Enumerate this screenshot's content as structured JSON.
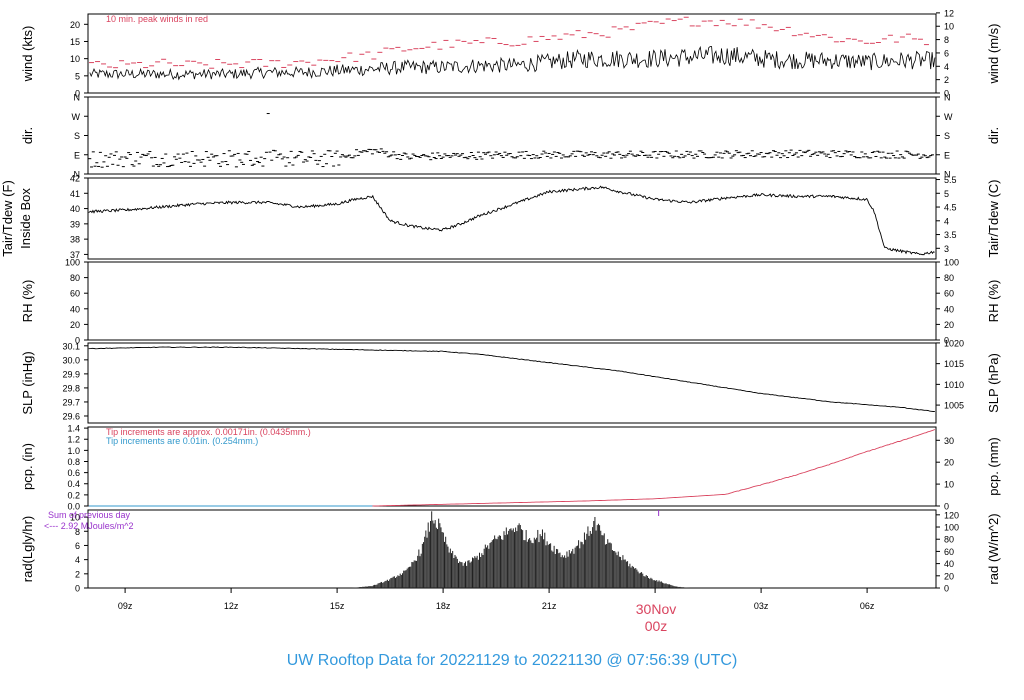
{
  "footer_title": "UW Rooftop Data for 20221129  to  20221130 @ 07:56:39  (UTC)",
  "date_label": {
    "line1": "30Nov",
    "line2": "00z"
  },
  "colors": {
    "frame": "#000000",
    "red": "#d9445f",
    "blue": "#3399cc",
    "purple": "#9933cc",
    "title_blue": "#3399dd"
  },
  "x_axis": {
    "unit": "hours since 2022-11-29 00z",
    "range": [
      7.95,
      31.95
    ],
    "ticks": [
      {
        "h": 9,
        "label": "09z"
      },
      {
        "h": 12,
        "label": "12z"
      },
      {
        "h": 15,
        "label": "15z"
      },
      {
        "h": 18,
        "label": "18z"
      },
      {
        "h": 21,
        "label": "21z"
      },
      {
        "h": 24,
        "label": ""
      },
      {
        "h": 27,
        "label": "03z"
      },
      {
        "h": 30,
        "label": "06z"
      }
    ]
  },
  "panels": {
    "wind": {
      "ylabel_left": "wind (kts)",
      "ylabel_right": "wind (m/s)",
      "left_ticks": [
        "0",
        "5",
        "10",
        "15",
        "20"
      ],
      "right_ticks": [
        "0",
        "2",
        "4",
        "6",
        "8",
        "10",
        "12"
      ],
      "annotation": "10 min. peak winds in red"
    },
    "dir": {
      "ylabel_left": "dir.",
      "ylabel_right": "dir.",
      "left_ticks": [
        "N",
        "E",
        "S",
        "W",
        "N"
      ],
      "right_ticks": [
        "N",
        "E",
        "S",
        "W",
        "N"
      ]
    },
    "temp": {
      "ylabel_left_1": "Tair/Tdew (F)",
      "ylabel_left_2": "Inside Box",
      "ylabel_right": "Tair/Tdew (C)",
      "left_ticks": [
        "37",
        "38",
        "39",
        "40",
        "41",
        "42"
      ],
      "right_ticks": [
        "3",
        "3.5",
        "4",
        "4.5",
        "5",
        "5.5"
      ]
    },
    "rh": {
      "ylabel_left": "RH (%)",
      "ylabel_right": "RH (%)",
      "left_ticks": [
        "0",
        "20",
        "40",
        "60",
        "80",
        "100"
      ],
      "right_ticks": [
        "0",
        "20",
        "40",
        "60",
        "80",
        "100"
      ]
    },
    "slp": {
      "ylabel_left": "SLP (inHg)",
      "ylabel_right": "SLP (hPa)",
      "left_ticks": [
        "29.6",
        "29.7",
        "29.8",
        "29.9",
        "30.0",
        "30.1"
      ],
      "right_ticks": [
        "1005",
        "1010",
        "1015",
        "1020"
      ]
    },
    "pcp": {
      "ylabel_left": "pcp. (in)",
      "ylabel_right": "pcp. (mm)",
      "left_ticks": [
        "0.0",
        "0.2",
        "0.4",
        "0.6",
        "0.8",
        "1.0",
        "1.2",
        "1.4"
      ],
      "right_ticks": [
        "0",
        "10",
        "20",
        "30"
      ],
      "annotation_red": "Tip increments are approx. 0.00171in. (0.0435mm.)",
      "annotation_blue": "Tip increments are 0.01in. (0.254mm.)"
    },
    "rad": {
      "ylabel_left": "rad(Lgly/hr)",
      "ylabel_right": "rad (W/m^2)",
      "left_ticks": [
        "0",
        "2",
        "4",
        "6",
        "8",
        "10"
      ],
      "right_ticks": [
        "0",
        "20",
        "40",
        "60",
        "80",
        "100",
        "120"
      ],
      "annotation_1": "Sum of previous day",
      "annotation_2": "<--- 2.92 MJoules/m^2"
    }
  },
  "chart_data": [
    {
      "type": "line",
      "panel": "wind",
      "name": "wind (kts)",
      "x": [
        8.0,
        9.0,
        10.0,
        11.0,
        12.0,
        13.0,
        14.0,
        15.0,
        16.0,
        17.0,
        18.0,
        19.0,
        20.0,
        21.0,
        22.0,
        23.0,
        24.0,
        25.0,
        26.0,
        27.0,
        28.0,
        29.0,
        30.0,
        31.0,
        31.95
      ],
      "y": [
        5.5,
        5.5,
        5.5,
        5.5,
        5.5,
        6,
        6,
        6.5,
        7,
        7.5,
        7.5,
        8,
        8,
        9,
        10,
        10,
        10,
        10.5,
        11,
        10,
        9.5,
        9.5,
        9,
        9.5,
        9.5
      ],
      "peak_y": [
        8,
        8,
        8.5,
        8,
        8.5,
        8.5,
        9,
        10,
        11,
        13,
        14,
        14.5,
        15,
        16,
        17,
        18,
        20,
        21,
        21,
        20,
        18,
        16,
        15,
        16,
        15
      ]
    },
    {
      "type": "scatter",
      "panel": "dir",
      "name": "wind direction",
      "x": [
        8.0,
        10.0,
        12.0,
        14.0,
        15.0,
        15.5,
        16.0,
        17.0,
        20.0,
        24.0,
        28.0,
        31.95
      ],
      "y": [
        70,
        75,
        72,
        70,
        72,
        95,
        110,
        80,
        90,
        90,
        95,
        90
      ]
    },
    {
      "type": "line",
      "panel": "temp",
      "name": "Tair (F)",
      "x": [
        8.0,
        9.0,
        10.0,
        11.0,
        12.0,
        13.0,
        14.0,
        15.0,
        15.5,
        16.0,
        16.5,
        17.0,
        17.5,
        18.0,
        18.5,
        19.0,
        20.0,
        21.0,
        22.0,
        22.5,
        23.0,
        24.0,
        25.0,
        26.0,
        27.0,
        28.0,
        29.0,
        30.0,
        30.2,
        30.5,
        31.0,
        31.5,
        31.95
      ],
      "y": [
        39.8,
        39.9,
        40.1,
        40.3,
        40.4,
        40.4,
        40.1,
        40.3,
        40.6,
        40.8,
        39.2,
        38.9,
        38.7,
        38.6,
        39.0,
        39.5,
        40.3,
        41.1,
        41.3,
        41.4,
        41.1,
        40.6,
        40.4,
        40.7,
        40.9,
        40.8,
        40.8,
        40.6,
        39.8,
        37.4,
        37.2,
        37.0,
        37.2
      ]
    },
    {
      "type": "line",
      "panel": "rh",
      "name": "RH (%)",
      "x": [],
      "y": []
    },
    {
      "type": "line",
      "panel": "slp",
      "name": "SLP (inHg)",
      "x": [
        8.0,
        10.0,
        12.0,
        14.0,
        16.0,
        18.0,
        19.0,
        20.0,
        21.0,
        22.0,
        23.0,
        24.0,
        25.0,
        26.0,
        27.0,
        28.0,
        29.0,
        30.0,
        31.0,
        31.95
      ],
      "y": [
        30.08,
        30.09,
        30.09,
        30.08,
        30.07,
        30.06,
        30.04,
        30.01,
        29.98,
        29.95,
        29.92,
        29.88,
        29.84,
        29.8,
        29.76,
        29.73,
        29.7,
        29.68,
        29.66,
        29.63
      ]
    },
    {
      "type": "line",
      "panel": "pcp",
      "name": "pcp. (in)",
      "x": [
        8.0,
        16.0,
        18.0,
        20.0,
        22.0,
        24.0,
        26.0,
        27.0,
        28.0,
        29.0,
        30.0,
        31.0,
        31.95
      ],
      "y": [
        0.0,
        0.0,
        0.03,
        0.06,
        0.09,
        0.13,
        0.21,
        0.38,
        0.56,
        0.76,
        0.98,
        1.18,
        1.38
      ]
    },
    {
      "type": "area",
      "panel": "rad",
      "name": "rad (Lgly/hr)",
      "x": [
        15.4,
        16.0,
        16.5,
        17.0,
        17.4,
        17.7,
        17.9,
        18.2,
        18.6,
        19.0,
        19.4,
        19.8,
        20.1,
        20.4,
        20.8,
        21.1,
        21.4,
        21.7,
        22.0,
        22.3,
        22.6,
        23.0,
        23.4,
        23.8,
        24.2,
        24.6,
        25.0
      ],
      "y": [
        0.0,
        0.3,
        1.2,
        2.5,
        5.5,
        10.2,
        8.5,
        5.0,
        3.2,
        4.5,
        6.5,
        7.8,
        8.8,
        7.0,
        7.5,
        5.8,
        4.5,
        5.5,
        7.0,
        9.3,
        6.5,
        4.5,
        2.8,
        1.5,
        0.8,
        0.2,
        0.0
      ]
    }
  ]
}
